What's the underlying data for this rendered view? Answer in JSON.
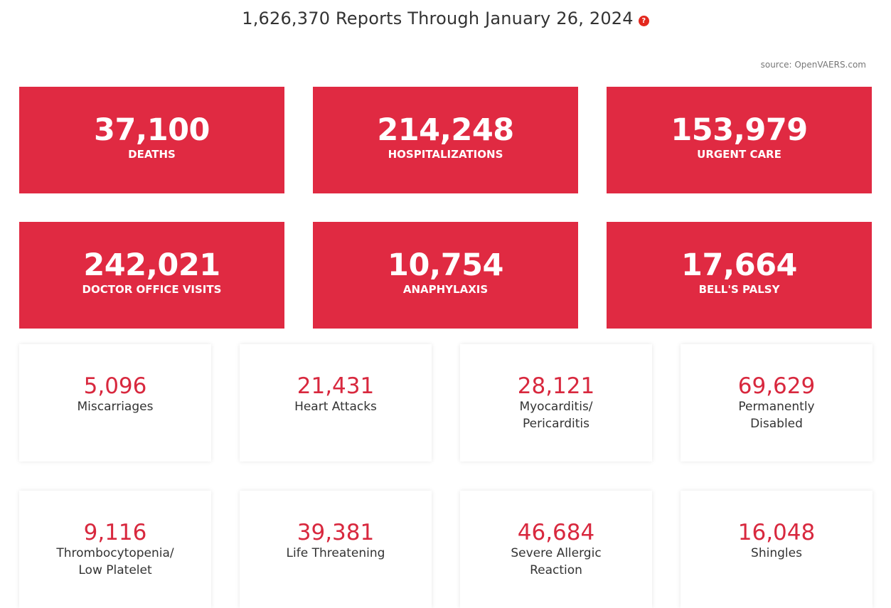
{
  "header": {
    "title": "1,626,370 Reports Through January 26, 2024",
    "help_icon_glyph": "?",
    "source": "source: OpenVAERS.com"
  },
  "colors": {
    "accent_red": "#e02a42",
    "number_red": "#d8283e",
    "help_icon_red": "#e3281e"
  },
  "primary_stats": [
    {
      "value": "37,100",
      "label": "DEATHS"
    },
    {
      "value": "214,248",
      "label": "HOSPITALIZATIONS"
    },
    {
      "value": "153,979",
      "label": "URGENT CARE"
    },
    {
      "value": "242,021",
      "label": "DOCTOR OFFICE VISITS"
    },
    {
      "value": "10,754",
      "label": "ANAPHYLAXIS"
    },
    {
      "value": "17,664",
      "label": "BELL'S PALSY"
    }
  ],
  "secondary_stats": [
    {
      "value": "5,096",
      "label_line1": "Miscarriages",
      "label_line2": ""
    },
    {
      "value": "21,431",
      "label_line1": "Heart Attacks",
      "label_line2": ""
    },
    {
      "value": "28,121",
      "label_line1": "Myocarditis/",
      "label_line2": "Pericarditis"
    },
    {
      "value": "69,629",
      "label_line1": "Permanently",
      "label_line2": "Disabled"
    },
    {
      "value": "9,116",
      "label_line1": "Thrombocytopenia/",
      "label_line2": "Low Platelet"
    },
    {
      "value": "39,381",
      "label_line1": "Life Threatening",
      "label_line2": ""
    },
    {
      "value": "46,684",
      "label_line1": "Severe Allergic",
      "label_line2": "Reaction"
    },
    {
      "value": "16,048",
      "label_line1": "Shingles",
      "label_line2": ""
    }
  ]
}
